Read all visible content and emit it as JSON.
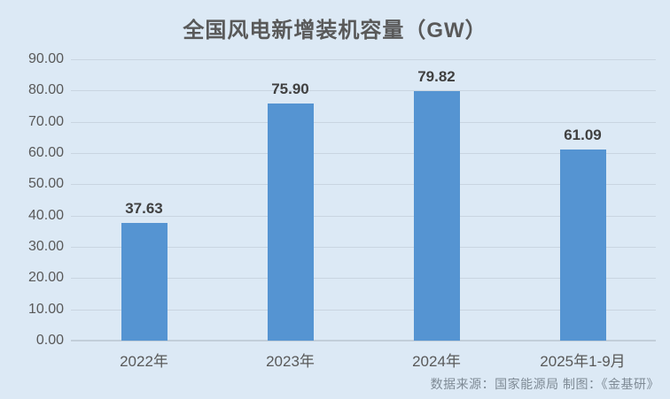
{
  "chart_data": {
    "type": "bar",
    "title": "全国风电新增装机容量（GW）",
    "categories": [
      "2022年",
      "2023年",
      "2024年",
      "2025年1-9月"
    ],
    "values": [
      37.63,
      75.9,
      79.82,
      61.09
    ],
    "value_labels": [
      "37.63",
      "75.90",
      "79.82",
      "61.09"
    ],
    "xlabel": "",
    "ylabel": "",
    "ylim": [
      0,
      90
    ],
    "y_ticks": [
      "0.00",
      "10.00",
      "20.00",
      "30.00",
      "40.00",
      "50.00",
      "60.00",
      "70.00",
      "80.00",
      "90.00"
    ],
    "grid": "horizontal",
    "legend": "none"
  },
  "footer": {
    "source": "数据来源：国家能源局  制图：《金基研》"
  },
  "colors": {
    "background": "#dce9f5",
    "bar": "#5594d2",
    "grid": "#c9d5e1",
    "axis_line": "#c2ced9",
    "title_text": "#595959",
    "axis_text": "#595959",
    "value_text": "#404040",
    "source_text": "#7e8a95"
  }
}
